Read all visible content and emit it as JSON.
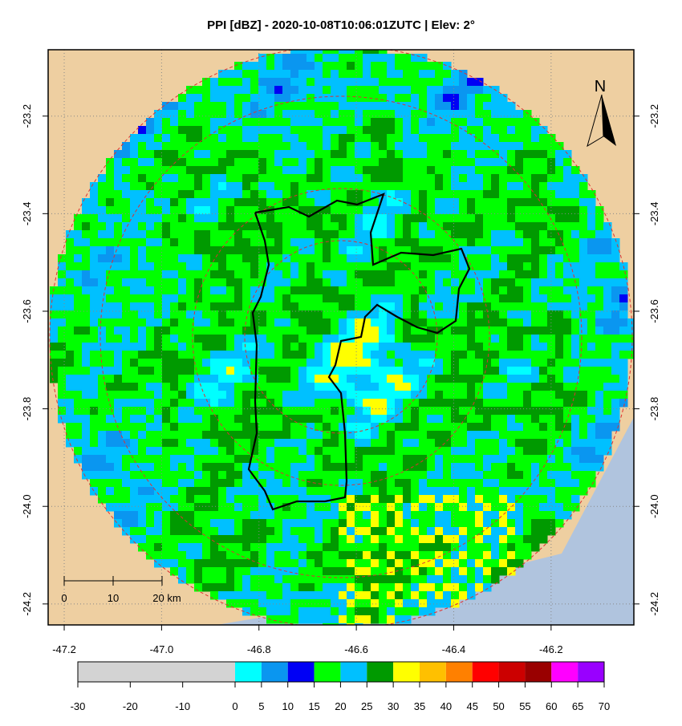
{
  "title": "PPI [dBZ] - 2020-10-08T10:06:01ZUTC | Elev: 2°",
  "map": {
    "xlim": [
      -47.233,
      -46.03
    ],
    "ylim": [
      -23.064,
      -24.243
    ],
    "xticks": [
      -47.2,
      {
        "value": -47,
        "label": "-47.0"
      },
      -46.8,
      -46.6,
      -46.4,
      -46.2
    ],
    "yticks": [
      -23.2,
      -23.4,
      -23.6,
      -23.8,
      {
        "value": -24,
        "label": "-24.0"
      },
      -24.2
    ],
    "north_label": "N",
    "scale_bar": [
      "0",
      "10",
      "20 km"
    ]
  },
  "colorbar": {
    "breaks": [
      -30,
      0,
      5,
      10,
      15,
      20,
      25,
      30,
      35,
      40,
      45,
      50,
      55,
      60,
      65,
      70
    ],
    "colors": [
      "#d3d3d3",
      "#00ffff",
      "#0a96f0",
      "#0000f5",
      "#00ff00",
      "#00c0ff",
      "#009a00",
      "#ffff00",
      "#ffc000",
      "#ff8000",
      "#ff0000",
      "#cc0000",
      "#990000",
      "#ff00ff",
      "#9900ff"
    ],
    "ticks": [
      -30,
      -20,
      -10,
      0,
      5,
      10,
      15,
      20,
      25,
      30,
      35,
      40,
      45,
      50,
      55,
      60,
      65,
      70
    ]
  }
}
